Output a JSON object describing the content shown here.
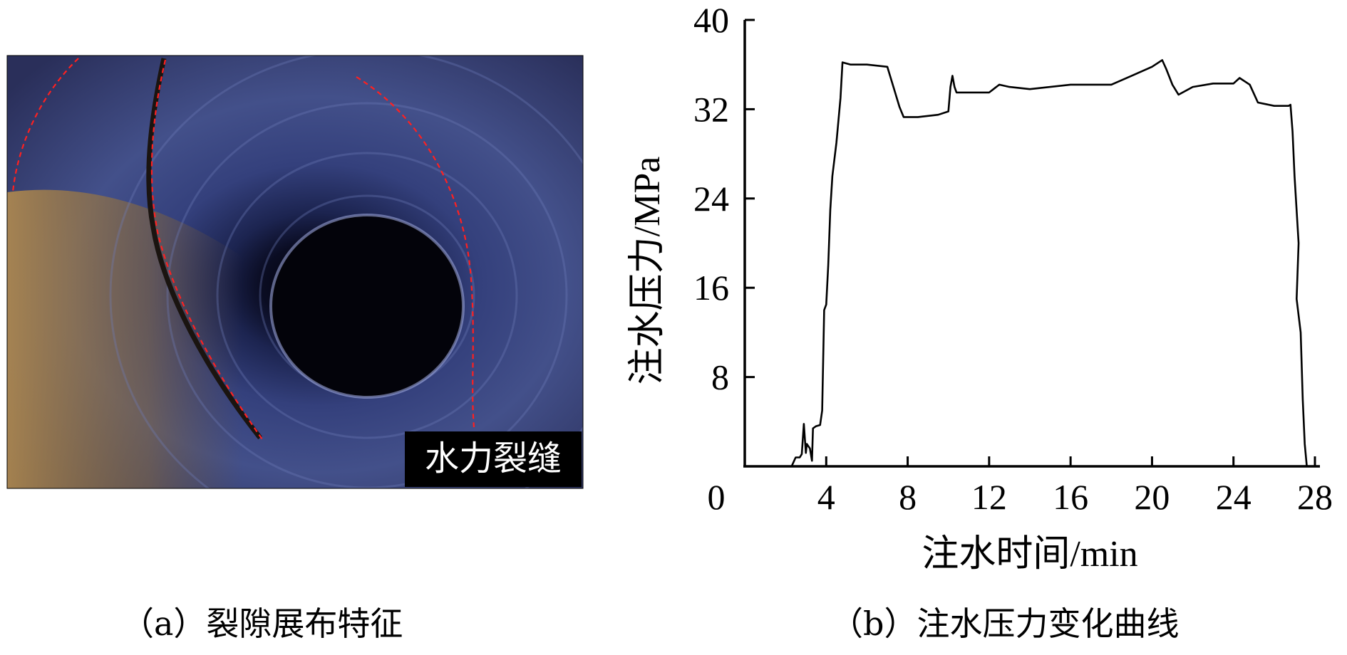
{
  "photo": {
    "overlay_label": "水力裂缝",
    "caption": "（a）裂隙展布特征",
    "colors": {
      "crack_trace": "#ff2020",
      "rock_blue": "#2c3a78",
      "rock_brown": "#8a6a3a",
      "label_bg": "#000000",
      "label_text": "#ffffff"
    }
  },
  "chart_caption": "（b）注水压力变化曲线",
  "chart_data": {
    "type": "line",
    "title": "",
    "xlabel": "注水时间/min",
    "ylabel": "注水压力/MPa",
    "xlim": [
      0,
      28
    ],
    "ylim": [
      0,
      40
    ],
    "x_ticks": [
      "0",
      "4",
      "8",
      "12",
      "16",
      "20",
      "24",
      "28"
    ],
    "y_ticks": [
      "8",
      "16",
      "24",
      "32",
      "40"
    ],
    "grid": false,
    "legend": "none",
    "line_color": "#000000",
    "series": [
      {
        "points": [
          [
            2.3,
            0
          ],
          [
            2.4,
            0.4
          ],
          [
            2.5,
            0.8
          ],
          [
            2.7,
            0.8
          ],
          [
            2.8,
            1.1
          ],
          [
            2.9,
            3.8
          ],
          [
            3.0,
            1.2
          ],
          [
            3.05,
            2.0
          ],
          [
            3.2,
            1.6
          ],
          [
            3.3,
            0.5
          ],
          [
            3.35,
            3.4
          ],
          [
            3.5,
            3.6
          ],
          [
            3.7,
            3.7
          ],
          [
            3.8,
            5.0
          ],
          [
            3.9,
            14.0
          ],
          [
            4.0,
            14.5
          ],
          [
            4.1,
            18.0
          ],
          [
            4.2,
            23.0
          ],
          [
            4.3,
            26.0
          ],
          [
            4.5,
            29.0
          ],
          [
            4.7,
            33.0
          ],
          [
            4.8,
            36.2
          ],
          [
            5.2,
            36.0
          ],
          [
            6.0,
            36.0
          ],
          [
            7.0,
            35.8
          ],
          [
            7.3,
            34.0
          ],
          [
            7.6,
            32.2
          ],
          [
            7.8,
            31.3
          ],
          [
            8.5,
            31.3
          ],
          [
            9.5,
            31.5
          ],
          [
            10.0,
            31.8
          ],
          [
            10.1,
            34.0
          ],
          [
            10.2,
            35.0
          ],
          [
            10.3,
            34.0
          ],
          [
            10.4,
            33.5
          ],
          [
            11.0,
            33.5
          ],
          [
            12.0,
            33.5
          ],
          [
            12.5,
            34.2
          ],
          [
            13.0,
            34.0
          ],
          [
            14.0,
            33.8
          ],
          [
            15.0,
            34.0
          ],
          [
            16.0,
            34.2
          ],
          [
            17.0,
            34.2
          ],
          [
            18.0,
            34.2
          ],
          [
            19.0,
            35.0
          ],
          [
            20.0,
            35.8
          ],
          [
            20.5,
            36.4
          ],
          [
            20.7,
            35.6
          ],
          [
            21.0,
            34.2
          ],
          [
            21.3,
            33.3
          ],
          [
            22.0,
            34.0
          ],
          [
            23.0,
            34.3
          ],
          [
            24.0,
            34.3
          ],
          [
            24.3,
            34.8
          ],
          [
            24.8,
            34.2
          ],
          [
            25.2,
            32.6
          ],
          [
            26.0,
            32.3
          ],
          [
            26.7,
            32.3
          ],
          [
            26.8,
            32.4
          ],
          [
            26.9,
            30.0
          ],
          [
            27.0,
            26.0
          ],
          [
            27.2,
            20.0
          ],
          [
            27.1,
            15.0
          ],
          [
            27.3,
            12.0
          ],
          [
            27.4,
            6.0
          ],
          [
            27.5,
            2.0
          ],
          [
            27.6,
            0
          ]
        ]
      }
    ]
  }
}
